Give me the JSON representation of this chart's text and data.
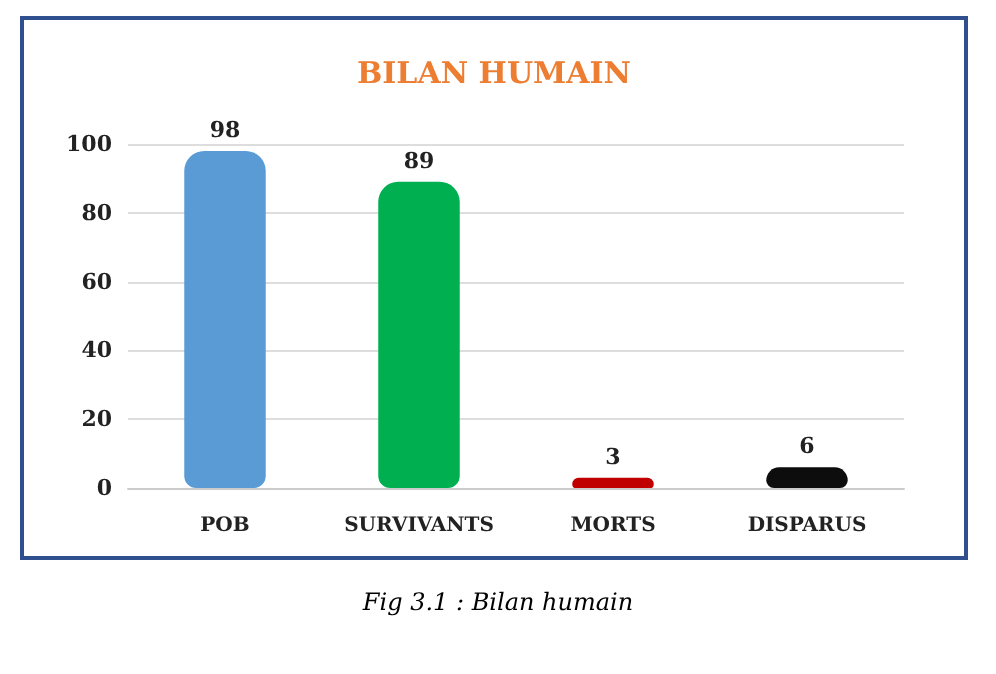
{
  "chart_data": {
    "type": "bar",
    "title": "BILAN HUMAIN",
    "categories": [
      "POB",
      "SURVIVANTS",
      "MORTS",
      "DISPARUS"
    ],
    "values": [
      98,
      89,
      3,
      6
    ],
    "colors": [
      "#5b9bd5",
      "#00b050",
      "#c00000",
      "#0d0d0d"
    ],
    "ylim": [
      0,
      100
    ],
    "yticks": [
      0,
      20,
      40,
      60,
      80,
      100
    ],
    "grid": true,
    "data_labels": true,
    "annotations": [
      "Fig 3.1 : Bilan humain"
    ]
  }
}
